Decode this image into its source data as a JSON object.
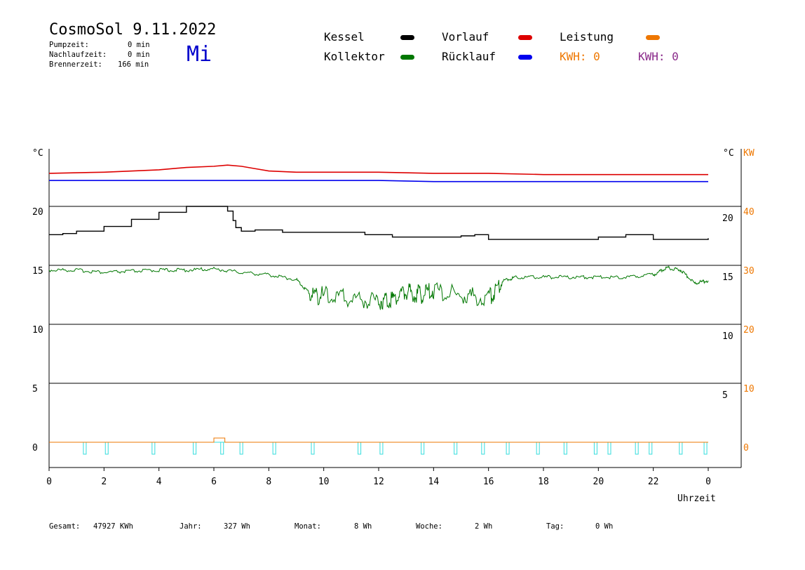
{
  "header": {
    "title": "CosmoSol 9.11.2022",
    "weekday": "Mi",
    "stats": [
      {
        "label": "Pumpzeit:",
        "value": "0 min"
      },
      {
        "label": "Nachlaufzeit:",
        "value": "0 min"
      },
      {
        "label": "Brennerzeit:",
        "value": "166 min"
      }
    ]
  },
  "legend": {
    "kessel": "Kessel",
    "kollektor": "Kollektor",
    "vorlauf": "Vorlauf",
    "ruecklauf": "Rücklauf",
    "leistung": "Leistung",
    "kwh_orange": "KWH: 0",
    "kwh_purple": "KWH: 0"
  },
  "colors": {
    "kessel": "#000000",
    "kollektor": "#007700",
    "vorlauf": "#dd0000",
    "ruecklauf": "#0000ee",
    "leistung": "#ee7700",
    "kwh_purple": "#8a2a8a",
    "pump": "#33dddd",
    "weekday": "#0000cc"
  },
  "footer": {
    "gesamt_label": "Gesamt:",
    "gesamt_value": "47927 KWh",
    "jahr_label": "Jahr:",
    "jahr_value": "327 Wh",
    "monat_label": "Monat:",
    "monat_value": "8 Wh",
    "woche_label": "Woche:",
    "woche_value": "2 Wh",
    "tag_label": "Tag:",
    "tag_value": "0 Wh"
  },
  "chart_data": {
    "type": "line",
    "xlabel": "Uhrzeit",
    "x_ticks": [
      "0",
      "2",
      "4",
      "6",
      "8",
      "10",
      "12",
      "14",
      "16",
      "18",
      "20",
      "22",
      "0"
    ],
    "xlim": [
      0,
      24
    ],
    "y_unit_left": "°C",
    "y_unit_right": "°C",
    "y_unit_power": "KW",
    "left_ticks": [
      "20",
      "15",
      "10",
      "5",
      "0"
    ],
    "right_ticks": [
      "20",
      "15",
      "10",
      "5"
    ],
    "power_ticks": [
      "40",
      "30",
      "20",
      "10",
      "0"
    ],
    "grid": true,
    "series": [
      {
        "name": "Vorlauf",
        "x": [
          0,
          2,
          4,
          5,
          6,
          6.5,
          7,
          7.5,
          8,
          9,
          10,
          12,
          14,
          16,
          18,
          20,
          22,
          24
        ],
        "y": [
          22.8,
          22.9,
          23.1,
          23.3,
          23.4,
          23.5,
          23.4,
          23.2,
          23.0,
          22.9,
          22.9,
          22.9,
          22.8,
          22.8,
          22.7,
          22.7,
          22.7,
          22.7
        ]
      },
      {
        "name": "Rücklauf",
        "x": [
          0,
          2,
          4,
          6,
          8,
          10,
          12,
          14,
          16,
          18,
          20,
          22,
          24
        ],
        "y": [
          22.2,
          22.2,
          22.2,
          22.2,
          22.2,
          22.2,
          22.2,
          22.1,
          22.1,
          22.1,
          22.1,
          22.1,
          22.1
        ]
      },
      {
        "name": "Kessel",
        "x": [
          0,
          0.5,
          1,
          2,
          3,
          4,
          5,
          5.5,
          6.2,
          6.5,
          6.7,
          6.8,
          7,
          7.5,
          8,
          8.5,
          9,
          10,
          11,
          11.5,
          12,
          12.5,
          13,
          14,
          15,
          15.5,
          16,
          16.5,
          17,
          18,
          19,
          20,
          21,
          22,
          23,
          24
        ],
        "y": [
          17.6,
          17.7,
          17.9,
          18.3,
          18.9,
          19.5,
          20.0,
          20.0,
          20.0,
          19.6,
          18.8,
          18.2,
          17.9,
          18.0,
          18.0,
          17.8,
          17.8,
          17.8,
          17.8,
          17.6,
          17.6,
          17.4,
          17.4,
          17.4,
          17.5,
          17.6,
          17.2,
          17.2,
          17.2,
          17.2,
          17.2,
          17.4,
          17.6,
          17.2,
          17.2,
          17.3
        ]
      },
      {
        "name": "Kollektor",
        "x": [
          0,
          1,
          2,
          3,
          4,
          5,
          6,
          7,
          8,
          9,
          9.5,
          10,
          11,
          12,
          12.5,
          13,
          13.5,
          14,
          15,
          16,
          16.5,
          17,
          18,
          19,
          20,
          21,
          22,
          22.5,
          23,
          23.5,
          24
        ],
        "y": [
          14.6,
          14.6,
          14.4,
          14.5,
          14.6,
          14.6,
          14.7,
          14.4,
          14.2,
          13.8,
          12.6,
          12.4,
          12.2,
          12.0,
          12.2,
          12.8,
          12.5,
          12.9,
          12.4,
          12.2,
          13.7,
          14.0,
          14.0,
          14.0,
          14.0,
          14.0,
          14.2,
          14.8,
          14.6,
          13.5,
          13.7
        ]
      },
      {
        "name": "Leistung",
        "x": [
          0,
          6,
          6.2,
          6.3,
          24
        ],
        "y": [
          0,
          0,
          0.3,
          0,
          0
        ]
      }
    ],
    "pump_pulses_h": [
      1.3,
      2.1,
      3.8,
      5.3,
      6.3,
      7.0,
      8.2,
      9.6,
      11.3,
      12.1,
      13.6,
      14.8,
      15.8,
      16.7,
      17.8,
      18.8,
      19.9,
      20.4,
      21.4,
      21.9,
      23.0,
      23.9
    ]
  }
}
